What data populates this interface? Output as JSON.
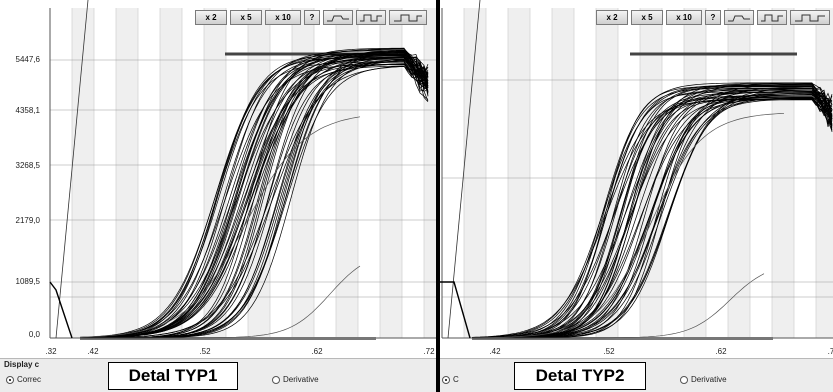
{
  "toolbar": {
    "zoom_buttons": [
      "x 2",
      "x 5",
      "x 10"
    ],
    "help_label": "?"
  },
  "left_panel": {
    "y_ticks": [
      "5447,6",
      "4358,1",
      "3268,5",
      "2179,0",
      "1089,5",
      "0,0"
    ],
    "x_ticks": [
      ".32",
      ".42",
      ".52",
      ".62",
      ".72"
    ],
    "display_label": "Display c",
    "radio_corrected": "Correc",
    "radio_derivative": "Derivative",
    "caption": "Detal TYP1"
  },
  "right_panel": {
    "x_ticks": [
      ".42",
      ".52",
      ".62",
      ".7"
    ],
    "radio_corrected": "C",
    "radio_derivative": "Derivative",
    "caption": "Detal TYP2"
  },
  "colors": {
    "curve": "#000000",
    "grid": "#c8c8c8",
    "band": "#efefef"
  }
}
